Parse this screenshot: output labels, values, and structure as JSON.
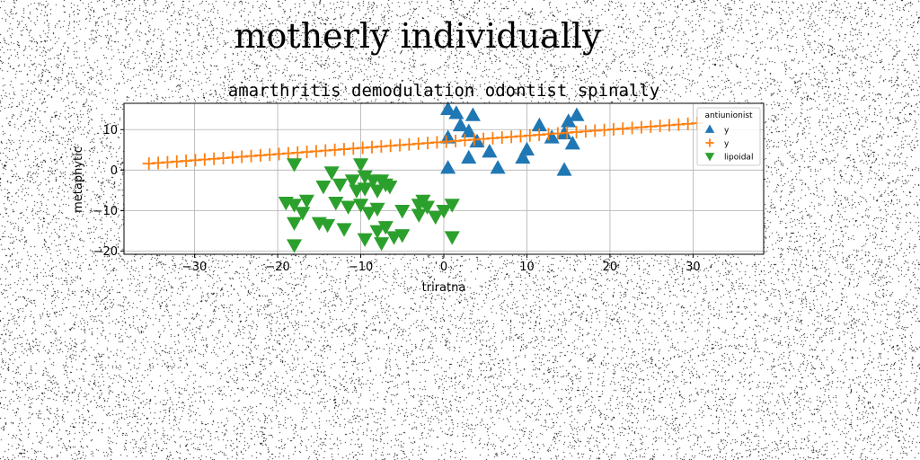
{
  "figure": {
    "suptitle": "motherly individually"
  },
  "chart_data": {
    "type": "scatter",
    "title": "amarthritis demodulation odontist spinally",
    "xlabel": "triratna",
    "ylabel": "metaphytic",
    "xlim": [
      -38.5,
      38.5
    ],
    "ylim": [
      -20.8,
      16.5
    ],
    "xticks": [
      -30,
      -20,
      -10,
      0,
      10,
      20,
      30
    ],
    "yticks": [
      -20,
      -10,
      0,
      10
    ],
    "grid": true,
    "legend": {
      "title": "antiunionist",
      "placement": "top-right"
    },
    "series": [
      {
        "name": "y",
        "marker": "triangle-up",
        "color": "#1f77b4",
        "points": [
          [
            0.5,
            15
          ],
          [
            1.5,
            14
          ],
          [
            3.5,
            13.5
          ],
          [
            11.5,
            11
          ],
          [
            15,
            12
          ],
          [
            16,
            13.5
          ],
          [
            2,
            11
          ],
          [
            3,
            9.5
          ],
          [
            4,
            7
          ],
          [
            0.5,
            8
          ],
          [
            10,
            5
          ],
          [
            13,
            8
          ],
          [
            14.5,
            9
          ],
          [
            15.5,
            6.5
          ],
          [
            9.5,
            3
          ],
          [
            3,
            3
          ],
          [
            5.5,
            4.5
          ],
          [
            6.5,
            0.5
          ],
          [
            0.5,
            0.5
          ],
          [
            14.5,
            0
          ]
        ]
      },
      {
        "name": "y",
        "marker": "plus",
        "color": "#ff7f0e",
        "line": {
          "from": [
            -35.5,
            1.6
          ],
          "to": [
            30.5,
            11.6
          ],
          "count": 60
        }
      },
      {
        "name": "lipoidal",
        "marker": "triangle-down",
        "color": "#2ca02c",
        "points": [
          [
            -18,
            1.5
          ],
          [
            -10,
            1.5
          ],
          [
            -13.5,
            -0.5
          ],
          [
            -9.5,
            -1.5
          ],
          [
            -11,
            -2.5
          ],
          [
            -8.5,
            -2.5
          ],
          [
            -7.5,
            -2.5
          ],
          [
            -14.5,
            -4
          ],
          [
            -12.5,
            -3.5
          ],
          [
            -9.5,
            -4.5
          ],
          [
            -7,
            -3.5
          ],
          [
            -10.5,
            -5
          ],
          [
            -8,
            -5
          ],
          [
            -6.5,
            -4
          ],
          [
            -16.5,
            -7.5
          ],
          [
            -19,
            -8
          ],
          [
            -18,
            -8.5
          ],
          [
            -17,
            -10.5
          ],
          [
            -13,
            -8
          ],
          [
            -11.5,
            -9
          ],
          [
            -10,
            -8.5
          ],
          [
            -9,
            -10.5
          ],
          [
            -8,
            -9.5
          ],
          [
            -2.5,
            -7.5
          ],
          [
            -3,
            -8.5
          ],
          [
            -2,
            -9
          ],
          [
            1,
            -8.5
          ],
          [
            -5,
            -10
          ],
          [
            -3,
            -11
          ],
          [
            -1,
            -11.5
          ],
          [
            0,
            -10
          ],
          [
            -18,
            -13
          ],
          [
            -15,
            -13
          ],
          [
            -14,
            -13.5
          ],
          [
            -12,
            -14.5
          ],
          [
            -8,
            -15
          ],
          [
            -7,
            -14
          ],
          [
            -5,
            -16
          ],
          [
            -6,
            -16.5
          ],
          [
            -9.5,
            -17
          ],
          [
            -7.5,
            -18
          ],
          [
            -18,
            -18.5
          ],
          [
            1,
            -16.5
          ]
        ]
      }
    ]
  }
}
